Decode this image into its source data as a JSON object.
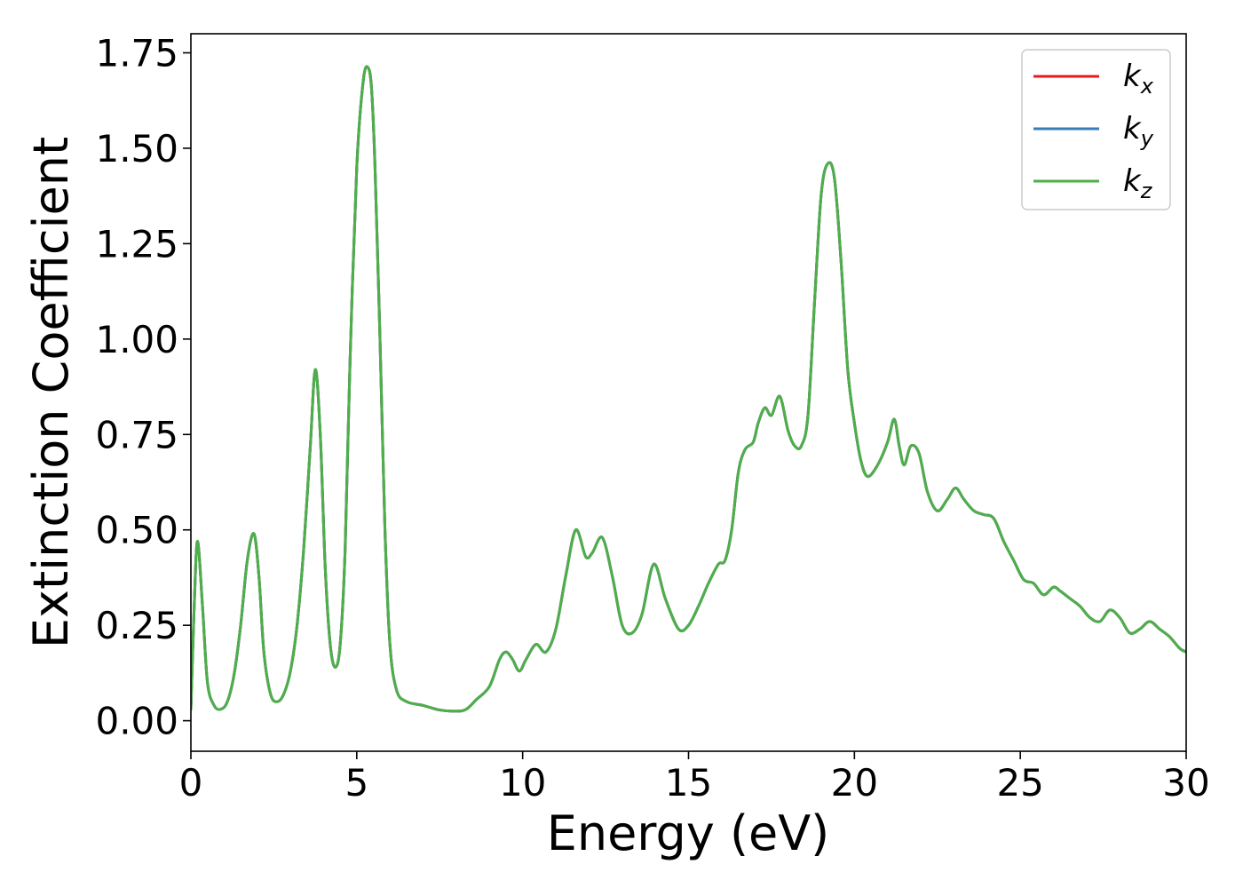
{
  "chart_data": {
    "type": "line",
    "title": "",
    "xlabel": "Energy (eV)",
    "ylabel": "Extinction Coefficient",
    "xlim": [
      0,
      30
    ],
    "ylim": [
      -0.08,
      1.8
    ],
    "xticks": [
      0,
      5,
      10,
      15,
      20,
      25,
      30
    ],
    "xtick_labels": [
      "0",
      "5",
      "10",
      "15",
      "20",
      "25",
      "30"
    ],
    "yticks": [
      0.0,
      0.25,
      0.5,
      0.75,
      1.0,
      1.25,
      1.5,
      1.75
    ],
    "ytick_labels": [
      "0.00",
      "0.25",
      "0.50",
      "0.75",
      "1.00",
      "1.25",
      "1.50",
      "1.75"
    ],
    "grid": false,
    "legend_position": "top-right",
    "series": [
      {
        "name": "k_x",
        "label_main": "k",
        "label_sub": "x",
        "color": "#e41a1c",
        "ref": "shared"
      },
      {
        "name": "k_y",
        "label_main": "k",
        "label_sub": "y",
        "color": "#377eb8",
        "ref": "shared"
      },
      {
        "name": "k_z",
        "label_main": "k",
        "label_sub": "z",
        "color": "#4daf4a",
        "ref": "shared"
      }
    ],
    "x": [
      0.0,
      0.1,
      0.2,
      0.35,
      0.5,
      0.7,
      0.9,
      1.1,
      1.3,
      1.5,
      1.7,
      1.9,
      2.05,
      2.2,
      2.4,
      2.6,
      2.8,
      3.0,
      3.2,
      3.4,
      3.6,
      3.75,
      3.9,
      4.05,
      4.2,
      4.35,
      4.5,
      4.65,
      4.8,
      5.0,
      5.2,
      5.35,
      5.45,
      5.55,
      5.7,
      5.85,
      6.0,
      6.2,
      6.5,
      7.0,
      7.5,
      8.0,
      8.3,
      8.6,
      9.0,
      9.3,
      9.5,
      9.7,
      9.9,
      10.1,
      10.4,
      10.7,
      11.0,
      11.3,
      11.6,
      11.9,
      12.1,
      12.4,
      12.7,
      13.0,
      13.3,
      13.6,
      13.95,
      14.3,
      14.7,
      15.0,
      15.3,
      15.6,
      15.9,
      16.1,
      16.3,
      16.5,
      16.7,
      16.95,
      17.1,
      17.3,
      17.5,
      17.75,
      18.0,
      18.2,
      18.4,
      18.6,
      18.8,
      19.0,
      19.2,
      19.4,
      19.6,
      19.8,
      20.0,
      20.2,
      20.4,
      20.7,
      21.0,
      21.2,
      21.35,
      21.5,
      21.7,
      21.95,
      22.2,
      22.5,
      22.8,
      23.05,
      23.3,
      23.6,
      23.9,
      24.2,
      24.5,
      24.8,
      25.1,
      25.4,
      25.7,
      26.0,
      26.2,
      26.5,
      26.8,
      27.1,
      27.4,
      27.7,
      28.0,
      28.3,
      28.6,
      28.9,
      29.2,
      29.5,
      29.8,
      30.0
    ],
    "y": [
      0.03,
      0.3,
      0.47,
      0.3,
      0.1,
      0.04,
      0.03,
      0.05,
      0.12,
      0.25,
      0.42,
      0.49,
      0.38,
      0.18,
      0.07,
      0.05,
      0.07,
      0.13,
      0.25,
      0.45,
      0.72,
      0.92,
      0.75,
      0.4,
      0.2,
      0.14,
      0.2,
      0.45,
      0.95,
      1.45,
      1.68,
      1.71,
      1.65,
      1.45,
      1.0,
      0.5,
      0.2,
      0.08,
      0.05,
      0.04,
      0.028,
      0.025,
      0.03,
      0.055,
      0.09,
      0.16,
      0.18,
      0.16,
      0.13,
      0.16,
      0.2,
      0.18,
      0.24,
      0.38,
      0.5,
      0.43,
      0.44,
      0.48,
      0.38,
      0.25,
      0.23,
      0.28,
      0.41,
      0.32,
      0.24,
      0.25,
      0.3,
      0.36,
      0.41,
      0.42,
      0.5,
      0.65,
      0.71,
      0.73,
      0.78,
      0.82,
      0.8,
      0.85,
      0.76,
      0.72,
      0.72,
      0.8,
      1.1,
      1.38,
      1.46,
      1.42,
      1.2,
      0.92,
      0.78,
      0.68,
      0.64,
      0.67,
      0.73,
      0.79,
      0.72,
      0.67,
      0.72,
      0.7,
      0.6,
      0.55,
      0.58,
      0.61,
      0.58,
      0.55,
      0.54,
      0.53,
      0.47,
      0.42,
      0.37,
      0.36,
      0.33,
      0.35,
      0.34,
      0.32,
      0.3,
      0.27,
      0.26,
      0.29,
      0.27,
      0.23,
      0.24,
      0.26,
      0.24,
      0.22,
      0.19,
      0.18
    ]
  }
}
